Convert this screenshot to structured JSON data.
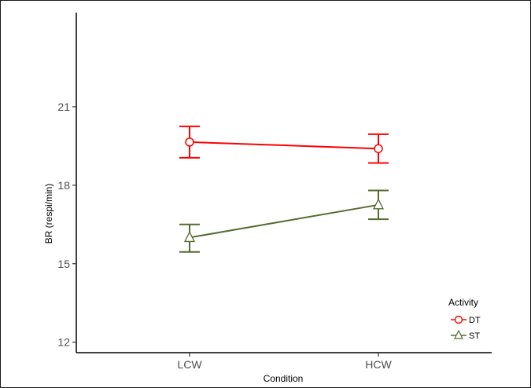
{
  "chart_data": {
    "type": "line",
    "xlabel": "Condition",
    "ylabel": "BR (respi/min)",
    "categories": [
      "LCW",
      "HCW"
    ],
    "x_axis_range": [
      0.4,
      2.6
    ],
    "ylim": [
      11.6,
      24.6
    ],
    "yticks": [
      12,
      15,
      18,
      21
    ],
    "grid": false,
    "legend": {
      "title": "Activity",
      "position": "bottom-right"
    },
    "series": [
      {
        "name": "DT",
        "color": "#ff0000",
        "marker": "circle",
        "values": [
          19.65,
          19.4
        ],
        "error_low": [
          19.05,
          18.85
        ],
        "error_high": [
          20.25,
          19.95
        ]
      },
      {
        "name": "ST",
        "color": "#556b2f",
        "marker": "triangle",
        "values": [
          16.0,
          17.25
        ],
        "error_low": [
          15.45,
          16.7
        ],
        "error_high": [
          16.5,
          17.8
        ]
      }
    ]
  }
}
